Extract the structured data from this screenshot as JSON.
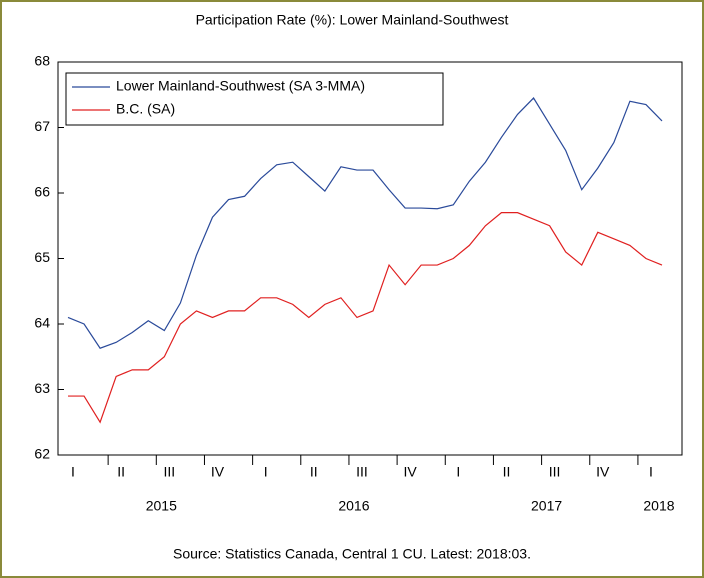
{
  "chart_data": {
    "type": "line",
    "title": "Participation Rate (%): Lower Mainland-Southwest",
    "source": "Source: Statistics Canada, Central 1 CU. Latest: 2018:03.",
    "categories": [
      "I",
      null,
      null,
      "II",
      null,
      null,
      "III",
      null,
      null,
      "IV",
      null,
      null,
      "I",
      null,
      null,
      "II",
      null,
      null,
      "III",
      null,
      null,
      "IV",
      null,
      null,
      "I",
      null,
      null,
      "II",
      null,
      null,
      "III",
      null,
      null,
      "IV",
      null,
      null,
      "I",
      null
    ],
    "years": [
      "2015",
      "2016",
      "2017",
      "2018"
    ],
    "ylim": [
      62,
      68
    ],
    "yticks": [
      62,
      63,
      64,
      65,
      66,
      67,
      68
    ],
    "legend": "upper left",
    "series": [
      {
        "name": "Lower Mainland-Southwest (SA 3-MMA)",
        "color": "#2a4a9a",
        "values": [
          64.1,
          64.0,
          63.63,
          63.72,
          63.87,
          64.05,
          63.9,
          64.32,
          65.05,
          65.63,
          65.9,
          65.95,
          66.22,
          66.43,
          66.47,
          66.25,
          66.03,
          66.4,
          66.35,
          66.35,
          66.05,
          65.77,
          65.77,
          65.76,
          65.82,
          66.18,
          66.47,
          66.85,
          67.2,
          67.45,
          67.05,
          66.65,
          66.05,
          66.38,
          66.77,
          67.4,
          67.35,
          67.1
        ]
      },
      {
        "name": "B.C. (SA)",
        "color": "#e02020",
        "values": [
          62.9,
          62.9,
          62.5,
          63.2,
          63.3,
          63.3,
          63.5,
          64.0,
          64.2,
          64.1,
          64.2,
          64.2,
          64.4,
          64.4,
          64.3,
          64.1,
          64.3,
          64.4,
          64.1,
          64.2,
          64.9,
          64.6,
          64.9,
          64.9,
          65.0,
          65.2,
          65.5,
          65.7,
          65.7,
          65.6,
          65.5,
          65.1,
          64.9,
          65.4,
          65.3,
          65.2,
          65.0,
          64.9
        ]
      }
    ]
  }
}
